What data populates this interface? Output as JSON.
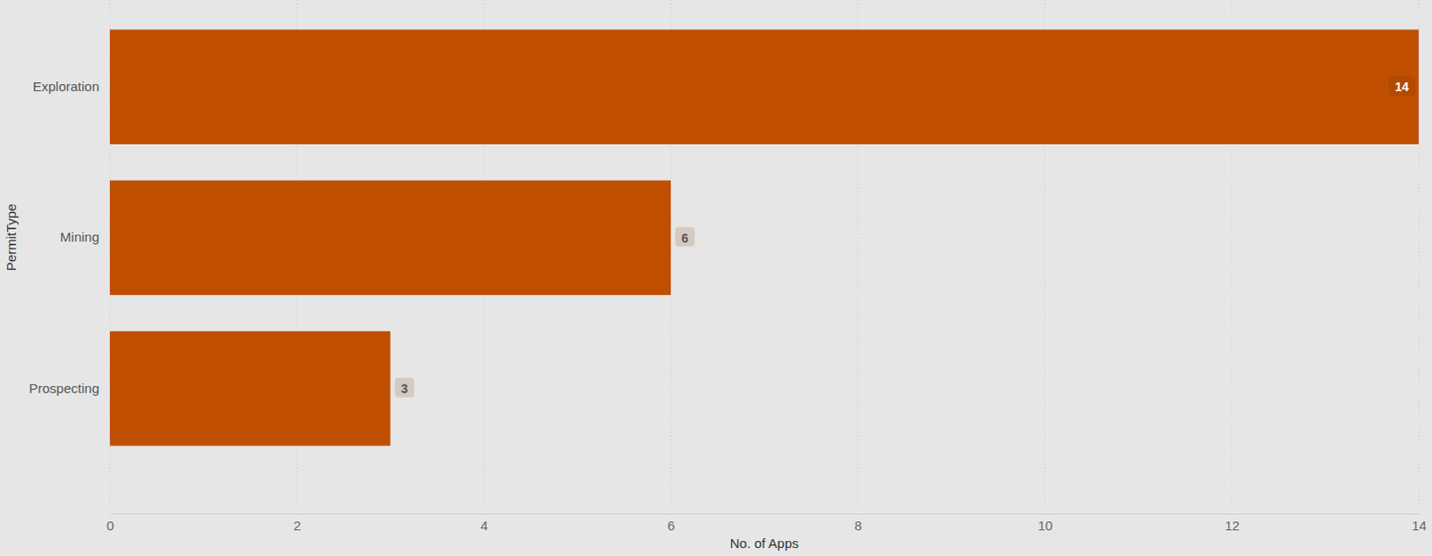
{
  "chart_data": {
    "type": "bar",
    "orientation": "horizontal",
    "categories": [
      "Exploration",
      "Mining",
      "Prospecting"
    ],
    "values": [
      14,
      6,
      3
    ],
    "color": "#c04f00",
    "xlabel": "No. of Apps",
    "ylabel": "PermitType",
    "xlim": [
      0,
      14
    ],
    "xticks": [
      0,
      2,
      4,
      6,
      8,
      10,
      12,
      14
    ],
    "grid": true,
    "data_labels": true
  }
}
